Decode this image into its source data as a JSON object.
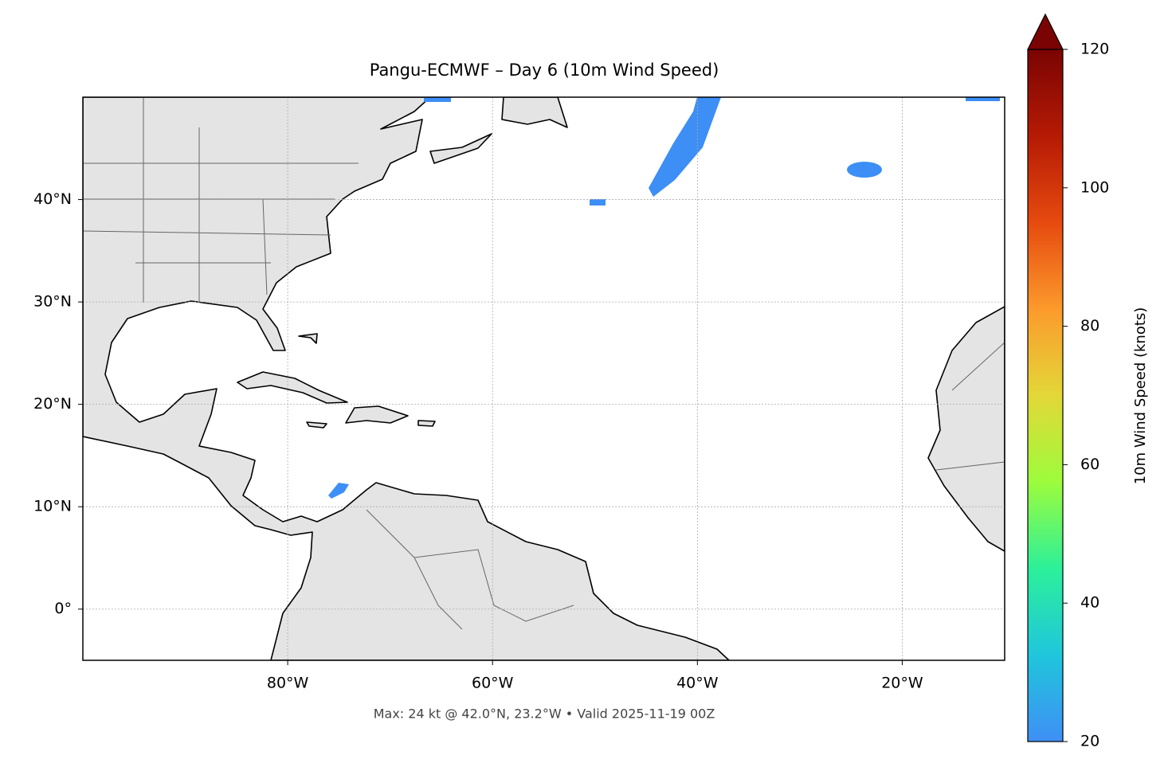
{
  "chart_data": {
    "type": "map",
    "title": "Pangu-ECMWF – Day 6 (10m Wind Speed)",
    "note": "Max: 24 kt @ 42.0°N, 23.2°W • Valid 2025-11-19 00Z",
    "xlim": [
      -100,
      -10
    ],
    "ylim": [
      -5,
      50
    ],
    "xticks": [
      {
        "value": -80,
        "label": "80°W"
      },
      {
        "value": -60,
        "label": "60°W"
      },
      {
        "value": -40,
        "label": "40°W"
      },
      {
        "value": -20,
        "label": "20°W"
      }
    ],
    "yticks": [
      {
        "value": 0,
        "label": "0°"
      },
      {
        "value": 10,
        "label": "10°N"
      },
      {
        "value": 20,
        "label": "20°N"
      },
      {
        "value": 30,
        "label": "30°N"
      },
      {
        "value": 40,
        "label": "40°N"
      }
    ],
    "grid": true,
    "colorbar": {
      "label": "10m Wind Speed (knots)",
      "lim": [
        20,
        120
      ],
      "ticks": [
        20,
        40,
        60,
        80,
        100,
        120
      ],
      "colors": [
        "#3f8ff5",
        "#1fc6dc",
        "#2cf09a",
        "#9dfc3c",
        "#e3d738",
        "#fc9a2c",
        "#e64a0f",
        "#b51a04",
        "#7a0403"
      ]
    }
  }
}
